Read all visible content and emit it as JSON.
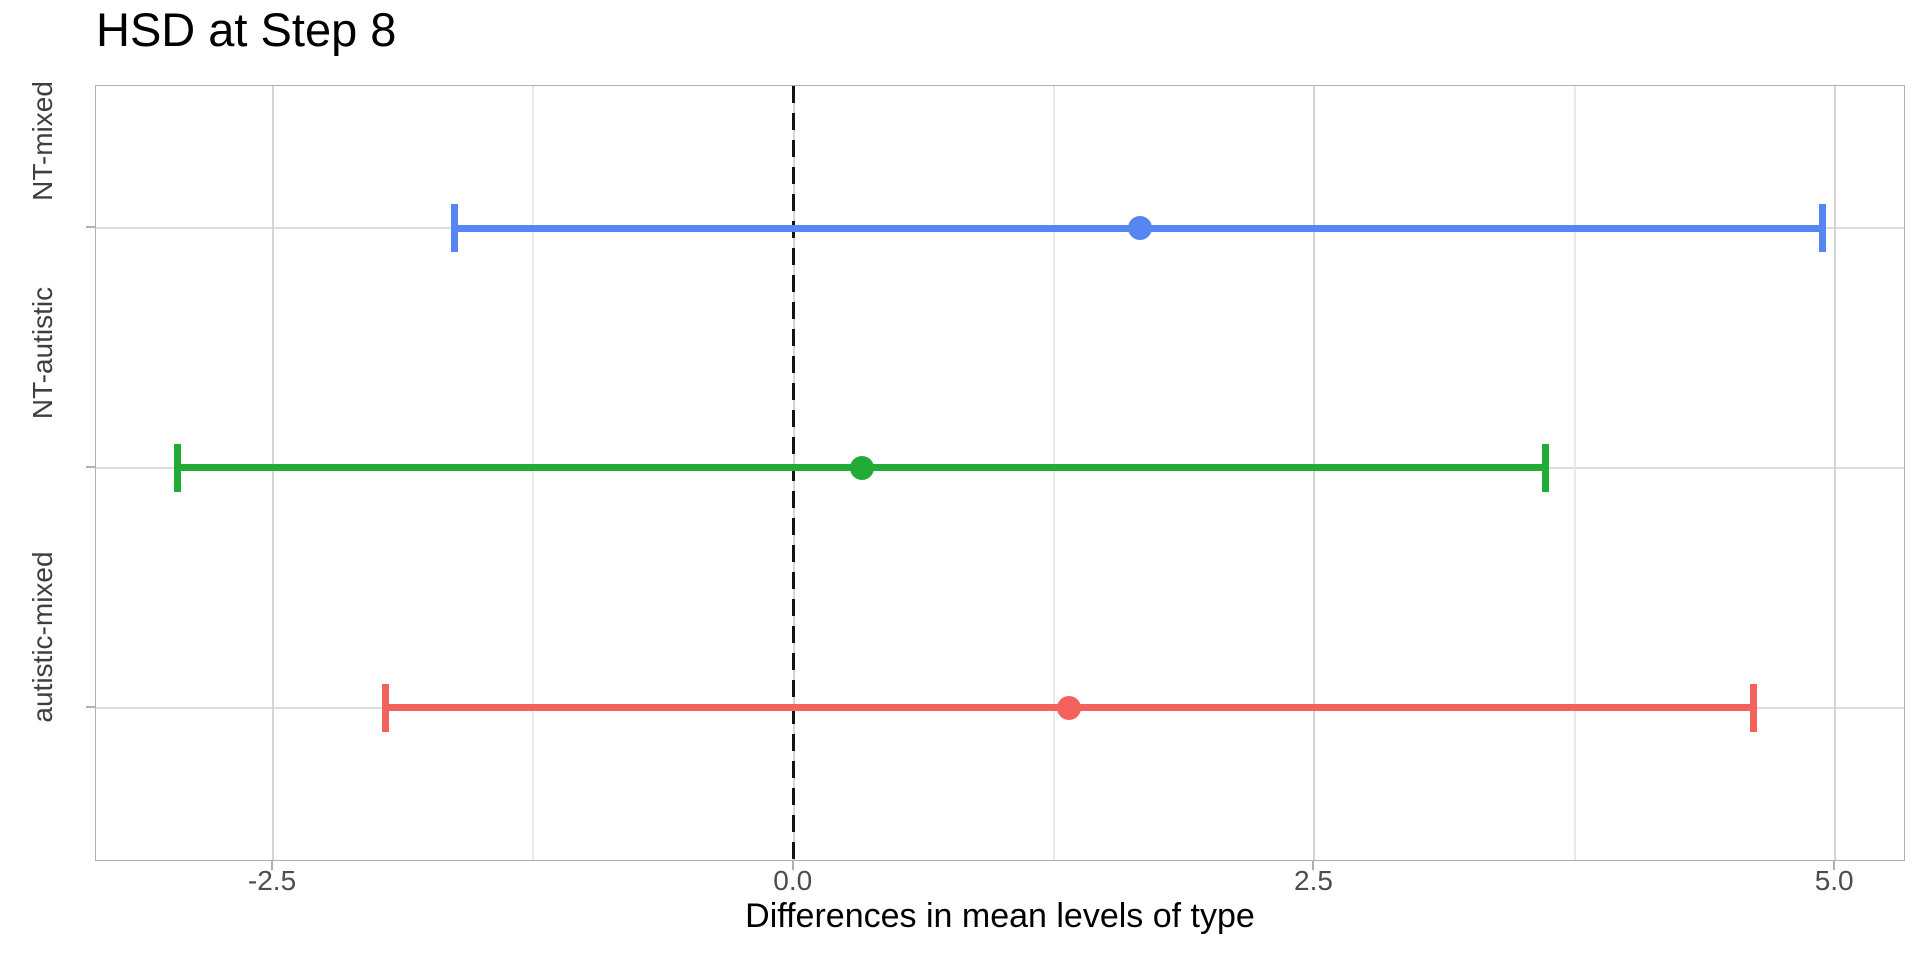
{
  "page": {
    "background": "#ffffff"
  },
  "chart_data": {
    "type": "errorbar",
    "orientation": "horizontal",
    "title": "HSD at Step 8",
    "xlabel": "Differences in mean levels of type",
    "ylabel": "",
    "xlim": [
      -3.35,
      5.34
    ],
    "x_major_ticks": [
      -2.5,
      0.0,
      2.5,
      5.0
    ],
    "x_major_tick_labels": [
      "-2.5",
      "0.0",
      "2.5",
      "5.0"
    ],
    "x_minor_ticks": [
      -1.25,
      1.25,
      3.75
    ],
    "grid": "on",
    "legend_position": "none",
    "zero_reference_line": {
      "x": 0.0,
      "style": "dashed",
      "color": "#141414"
    },
    "categories": [
      "NT-mixed",
      "NT-autistic",
      "autistic-mixed"
    ],
    "series": [
      {
        "name": "NT-mixed",
        "diff": 1.66,
        "lwr": -1.63,
        "upr": 4.94,
        "color": "#5686F2"
      },
      {
        "name": "NT-autistic",
        "diff": 0.33,
        "lwr": -2.96,
        "upr": 3.61,
        "color": "#23AB38"
      },
      {
        "name": "autistic-mixed",
        "diff": 1.32,
        "lwr": -1.96,
        "upr": 4.61,
        "color": "#F4625D"
      }
    ],
    "colors": {
      "major_grid": "#d5d5d5",
      "minor_grid": "#e9e9e9",
      "row_grid": "#dcdcdc",
      "panel_border": "#b0b0b0",
      "tick": "#b0b0b0",
      "tick_label_text": "#4d4d4d",
      "category_label_text": "#3f3f3f"
    }
  }
}
